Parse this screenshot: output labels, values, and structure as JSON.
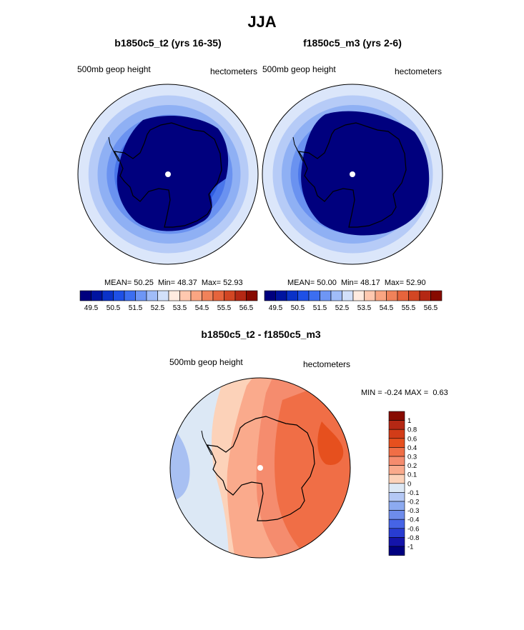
{
  "title": "JJA",
  "panels": [
    {
      "title": "b1850c5_t2 (yrs 16-35)",
      "left_label": "500mb geop height",
      "right_label": "hectometers",
      "stats": {
        "mean_label": "MEAN=",
        "mean": "50.25",
        "min_label": "Min=",
        "min": "48.37",
        "max_label": "Max=",
        "max": "52.93"
      }
    },
    {
      "title": "f1850c5_m3 (yrs 2-6)",
      "left_label": "500mb geop height",
      "right_label": "hectometers",
      "stats": {
        "mean_label": "MEAN=",
        "mean": "50.00",
        "min_label": "Min=",
        "min": "48.17",
        "max_label": "Max=",
        "max": "52.90"
      }
    }
  ],
  "colorbar_top": {
    "colors": [
      "#00007e",
      "#0014a0",
      "#0a32c8",
      "#1e50e6",
      "#3c6ef0",
      "#6e96f5",
      "#a0bcf8",
      "#d2e0fa",
      "#ffebe0",
      "#ffc8af",
      "#faa582",
      "#f0825a",
      "#e6643c",
      "#d24623",
      "#b42814",
      "#870a00"
    ],
    "tick_labels": [
      "49.5",
      "50.5",
      "51.5",
      "52.5",
      "53.5",
      "54.5",
      "55.5",
      "56.5"
    ]
  },
  "difference": {
    "title": "b1850c5_t2 - f1850c5_m3",
    "left_label": "500mb geop height",
    "right_label": "hectometers",
    "minmax": {
      "min_label": "MIN =",
      "min": "-0.24",
      "max_label": "MAX =",
      "max": "0.63"
    },
    "colorbar": {
      "colors": [
        "#870a00",
        "#b42814",
        "#d23c18",
        "#e6501e",
        "#f06e46",
        "#f58c6e",
        "#faaa8c",
        "#fcd2b9",
        "#dce8f5",
        "#b4c8f5",
        "#8caaf0",
        "#6e8ceb",
        "#4664e6",
        "#283cd2",
        "#1414aa",
        "#000080"
      ],
      "tick_labels": [
        "1",
        "0.8",
        "0.6",
        "0.4",
        "0.3",
        "0.2",
        "0.1",
        "0",
        "-0.1",
        "-0.2",
        "-0.3",
        "-0.4",
        "-0.6",
        "-0.8",
        "-1"
      ]
    }
  },
  "map_colors": {
    "blue_rings": [
      "#dbe6fa",
      "#b6cbf7",
      "#8fb0f4",
      "#6a92f0",
      "#4a76ea",
      "#2e5ce0",
      "#1740cc",
      "#0a28b0",
      "#00007e"
    ],
    "diff_field": {
      "light_blue": "#dce8f5",
      "blue": "#a8c0f2",
      "peach": "#fcd2b9",
      "salmon": "#faaa8c",
      "orange_light": "#f58c6e",
      "orange": "#f06e46",
      "orange_deep": "#e6501e",
      "red": "#d23c18"
    },
    "coast": "#000000",
    "pole": "#ffffff"
  }
}
